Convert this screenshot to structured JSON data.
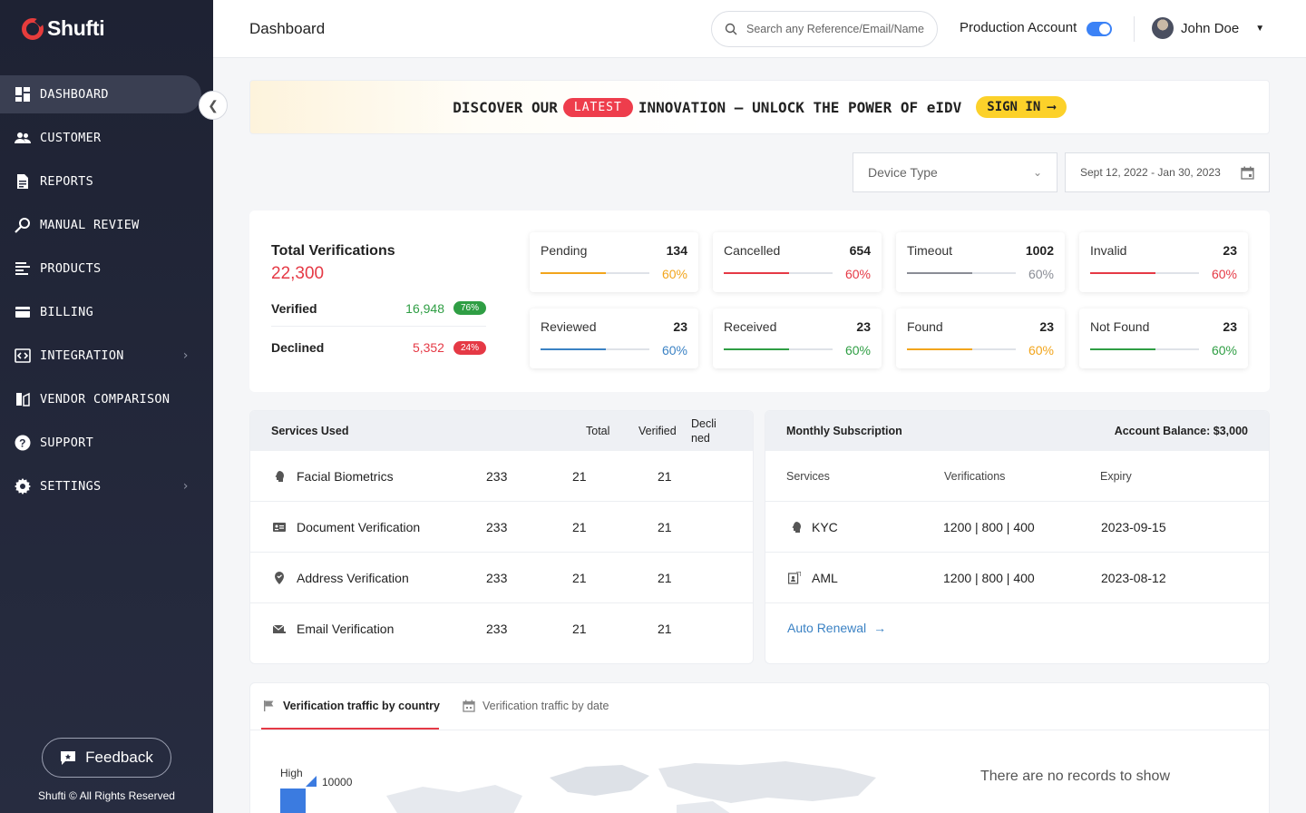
{
  "brand": {
    "name": "Shufti"
  },
  "sidebar": {
    "items": [
      {
        "label": "DASHBOARD",
        "icon": "dashboard-icon",
        "active": true
      },
      {
        "label": "CUSTOMER",
        "icon": "users-icon"
      },
      {
        "label": "REPORTS",
        "icon": "reports-icon"
      },
      {
        "label": "MANUAL REVIEW",
        "icon": "search-person-icon"
      },
      {
        "label": "PRODUCTS",
        "icon": "products-icon"
      },
      {
        "label": "BILLING",
        "icon": "billing-icon"
      },
      {
        "label": "INTEGRATION",
        "icon": "integration-icon",
        "has_submenu": true
      },
      {
        "label": "VENDOR COMPARISON",
        "icon": "vendor-icon"
      },
      {
        "label": "SUPPORT",
        "icon": "help-icon"
      },
      {
        "label": "SETTINGS",
        "icon": "gear-icon",
        "has_submenu": true
      }
    ],
    "feedback_label": "Feedback",
    "copyright": "Shufti © All Rights Reserved"
  },
  "header": {
    "title": "Dashboard",
    "search_placeholder": "Search any Reference/Email/Name",
    "account_label": "Production Account",
    "account_toggle_on": true,
    "user_name": "John Doe"
  },
  "banner": {
    "text_before": "DISCOVER OUR",
    "pill": "LATEST",
    "text_after": "INNOVATION — UNLOCK THE POWER OF eIDV",
    "cta": "SIGN IN"
  },
  "filters": {
    "device_type": "Device Type",
    "date_range": "Sept 12, 2022 - Jan 30, 2023"
  },
  "totals": {
    "title": "Total Verifications",
    "value": "22,300",
    "verified_label": "Verified",
    "verified_value": "16,948",
    "verified_pct": "76%",
    "declined_label": "Declined",
    "declined_value": "5,352",
    "declined_pct": "24%"
  },
  "status_cards": [
    {
      "label": "Pending",
      "value": "134",
      "pct": "60%",
      "fill": 0.6,
      "color": "#f2a51c"
    },
    {
      "label": "Cancelled",
      "value": "654",
      "pct": "60%",
      "fill": 0.6,
      "color": "#e53945"
    },
    {
      "label": "Timeout",
      "value": "1002",
      "pct": "60%",
      "fill": 0.6,
      "color": "#8a8d96"
    },
    {
      "label": "Invalid",
      "value": "23",
      "pct": "60%",
      "fill": 0.6,
      "color": "#e53945"
    },
    {
      "label": "Reviewed",
      "value": "23",
      "pct": "60%",
      "fill": 0.6,
      "color": "#3b82c4"
    },
    {
      "label": "Received",
      "value": "23",
      "pct": "60%",
      "fill": 0.6,
      "color": "#2f9e44"
    },
    {
      "label": "Found",
      "value": "23",
      "pct": "60%",
      "fill": 0.6,
      "color": "#f2a51c"
    },
    {
      "label": "Not Found",
      "value": "23",
      "pct": "60%",
      "fill": 0.6,
      "color": "#2f9e44"
    }
  ],
  "services": {
    "headers": {
      "name": "Services Used",
      "total": "Total",
      "verified": "Verified",
      "declined_line1": "Decli",
      "declined_line2": "ned"
    },
    "rows": [
      {
        "name": "Facial Biometrics",
        "icon": "face-icon",
        "total": "233",
        "verified": "21",
        "declined": "21"
      },
      {
        "name": "Document Verification",
        "icon": "id-card-icon",
        "total": "233",
        "verified": "21",
        "declined": "21"
      },
      {
        "name": "Address Verification",
        "icon": "location-icon",
        "total": "233",
        "verified": "21",
        "declined": "21"
      },
      {
        "name": "Email Verification",
        "icon": "email-icon",
        "total": "233",
        "verified": "21",
        "declined": "21"
      }
    ]
  },
  "subscription": {
    "title": "Monthly Subscription",
    "balance": "Account Balance: $3,000",
    "headers": {
      "services": "Services",
      "verifications": "Verifications",
      "expiry": "Expiry"
    },
    "rows": [
      {
        "service": "KYC",
        "icon": "face-icon",
        "verifications": "1200 | 800 | 400",
        "expiry": "2023-09-15"
      },
      {
        "service": "AML",
        "icon": "aml-icon",
        "verifications": "1200 | 800 | 400",
        "expiry": "2023-08-12"
      }
    ],
    "auto_renewal": "Auto Renewal"
  },
  "traffic": {
    "tab_country": "Verification traffic by country",
    "tab_date": "Verification traffic by date",
    "legend_high": "High",
    "legend_value": "10000",
    "empty_message": "There are no records to show"
  }
}
